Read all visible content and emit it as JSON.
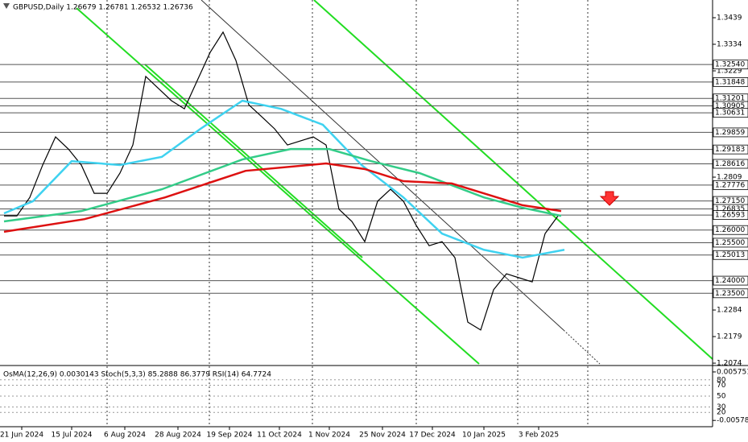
{
  "chart_data": {
    "type": "line",
    "title": "GBPUSD,Daily  1.26679 1.26781 1.26532 1.26736",
    "ylim": [
      1.2071,
      1.3509
    ],
    "yticks": [
      1.3439,
      1.3334,
      1.3229,
      1.2809,
      1.2284,
      1.2179,
      1.2074
    ],
    "levels": [
      {
        "value": 1.3254,
        "label": "1.32540"
      },
      {
        "value": 1.31848,
        "label": "1.31848"
      },
      {
        "value": 1.31201,
        "label": "1.31201"
      },
      {
        "value": 1.30905,
        "label": "1.30905"
      },
      {
        "value": 1.30631,
        "label": "1.30631"
      },
      {
        "value": 1.29859,
        "label": "1.29859"
      },
      {
        "value": 1.29183,
        "label": "1.29183"
      },
      {
        "value": 1.28616,
        "label": "1.28616"
      },
      {
        "value": 1.27776,
        "label": "1.27776"
      },
      {
        "value": 1.2715,
        "label": "1.27150"
      },
      {
        "value": 1.26835,
        "label": "1.26835"
      },
      {
        "value": 1.26593,
        "label": "1.26593"
      },
      {
        "value": 1.26,
        "label": "1.26000"
      },
      {
        "value": 1.255,
        "label": "1.25500"
      },
      {
        "value": 1.25013,
        "label": "1.25013"
      },
      {
        "value": 1.24,
        "label": "1.24000"
      },
      {
        "value": 1.235,
        "label": "1.23500"
      }
    ],
    "xlim": [
      0,
      176
    ],
    "xticks": [
      {
        "value": 5.5,
        "label": "21 Jun 2024"
      },
      {
        "value": 21,
        "label": "15 Jul 2024"
      },
      {
        "value": 37.5,
        "label": "6 Aug 2024"
      },
      {
        "value": 54,
        "label": "28 Aug 2024"
      },
      {
        "value": 70,
        "label": "19 Sep 2024"
      },
      {
        "value": 85.5,
        "label": "11 Oct 2024"
      },
      {
        "value": 101,
        "label": "1 Nov 2024"
      },
      {
        "value": 117.5,
        "label": "25 Nov 2024"
      },
      {
        "value": 133,
        "label": "17 Dec 2024"
      },
      {
        "value": 149,
        "label": "10 Jan 2025"
      },
      {
        "value": 166,
        "label": "3 Feb 2025"
      }
    ],
    "series": [
      {
        "color": "#000000",
        "x": [
          0,
          4,
          8,
          12,
          16,
          20,
          24,
          28,
          32,
          36,
          40,
          44,
          48,
          52,
          56,
          60,
          64,
          68,
          72,
          76,
          80,
          84,
          88,
          92,
          96,
          100,
          104,
          108,
          112,
          116,
          120,
          124,
          128,
          132,
          136,
          140,
          144,
          148,
          152,
          156,
          160,
          164,
          168,
          172
        ],
        "values": [
          1.2656,
          1.2656,
          1.2729,
          1.2857,
          1.2968,
          1.292,
          1.2857,
          1.2745,
          1.2745,
          1.2825,
          1.2936,
          1.3207,
          1.3159,
          1.3111,
          1.3079,
          1.3191,
          1.3302,
          1.3382,
          1.327,
          1.3095,
          1.3048,
          1.3,
          1.2936,
          1.2952,
          1.2968,
          1.2936,
          1.2682,
          1.2634,
          1.2554,
          1.2714,
          1.2761,
          1.2714,
          1.2618,
          1.2538,
          1.2554,
          1.2491,
          1.2236,
          1.2205,
          1.2364,
          1.2427,
          1.2411,
          1.2395,
          1.2586,
          1.2656
        ]
      },
      {
        "color": "#3fd2f0",
        "x": [
          0,
          9,
          21,
          36,
          49,
          61,
          74,
          86,
          99,
          111,
          124,
          136,
          149,
          161,
          174
        ],
        "values": [
          1.2666,
          1.2714,
          1.2872,
          1.2857,
          1.2889,
          1.3,
          1.3111,
          1.3079,
          1.3016,
          1.2857,
          1.2729,
          1.2586,
          1.2522,
          1.2491,
          1.2522
        ]
      },
      {
        "color": "#33cc88",
        "x": [
          0,
          24,
          49,
          74,
          89,
          101,
          114,
          129,
          149,
          161,
          173
        ],
        "values": [
          1.2634,
          1.2675,
          1.2761,
          1.2879,
          1.292,
          1.292,
          1.2872,
          1.2825,
          1.2729,
          1.2688,
          1.2656
        ]
      },
      {
        "color": "#dd1111",
        "x": [
          0,
          25,
          50,
          75,
          100,
          112,
          124,
          139,
          149,
          161,
          173
        ],
        "values": [
          1.2593,
          1.2643,
          1.2729,
          1.2834,
          1.2863,
          1.2841,
          1.2793,
          1.2784,
          1.2745,
          1.2698,
          1.2675
        ]
      }
    ],
    "indicator": {
      "label": "OsMA(12,26,9) 0.0030143  Stoch(5,3,3) 85.2888 86.3779  RSI(14) 64.7724",
      "osma_lim": [
        -0.0067,
        0.0067
      ],
      "osma_ticks": [
        {
          "value": 0.005751,
          "label": "0.005751"
        },
        {
          "value": -0.00578,
          "label": "-0.005780"
        }
      ],
      "osc_lim": [
        -2,
        102
      ],
      "osc_ticks": [
        80,
        70,
        50,
        30,
        20
      ]
    }
  }
}
